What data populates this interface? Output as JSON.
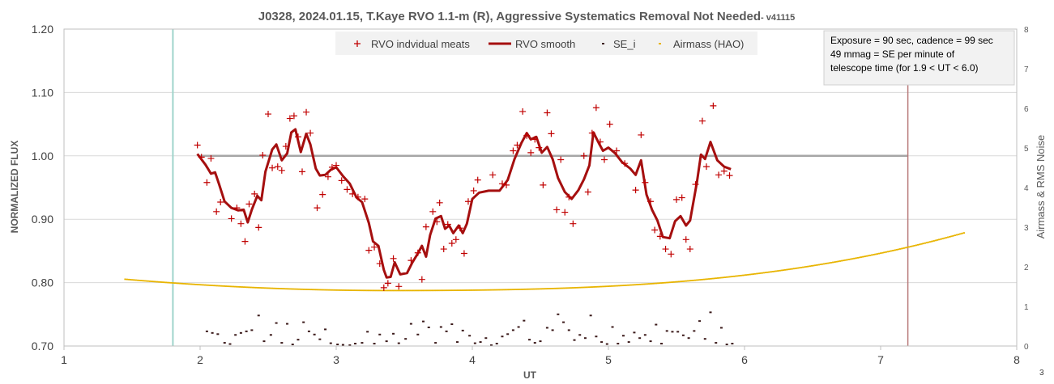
{
  "chart_data": {
    "type": "scatter",
    "title": "J0328, 2024.01.15, T.Kaye RVO 1.1-m (R), Aggressive Systematics Removal Not Needed",
    "title_suffix": "- v41115",
    "xlabel": "UT",
    "ylabel": "NORMALIZED FLUX",
    "y2label": "Airmass & RMS Noise",
    "xlim": [
      1,
      8
    ],
    "ylim": [
      0.7,
      1.2
    ],
    "y2lim": [
      0,
      8
    ],
    "x_ticks": [
      "1",
      "2",
      "3",
      "4",
      "5",
      "6",
      "7",
      "8"
    ],
    "y_ticks": [
      "0.70",
      "0.80",
      "0.90",
      "1.00",
      "1.10",
      "1.20"
    ],
    "y2_ticks": [
      "0",
      "1",
      "2",
      "3",
      "4",
      "5",
      "6",
      "7",
      "8"
    ],
    "grid": "horizontal",
    "legend_position": "top-center",
    "corner_label": "3",
    "annotation": [
      "Exposure = 90 sec, cadence = 99 sec",
      "49 mmag = SE per minute of",
      "telescope time  (for 1.9 < UT < 6.0)"
    ],
    "reference_lines": {
      "baseline_y": 1.0,
      "baseline_x_range": [
        2.0,
        7.2
      ],
      "start_line_x": 1.8,
      "end_line_x": 7.2
    },
    "series": [
      {
        "name": "RVO indvidual meats",
        "kind": "marker-plus",
        "axis": "left",
        "color": "#c00000",
        "points": [
          [
            1.98,
            1.017
          ],
          [
            2.01,
            0.998
          ],
          [
            2.05,
            0.958
          ],
          [
            2.08,
            0.996
          ],
          [
            2.12,
            0.912
          ],
          [
            2.15,
            0.927
          ],
          [
            2.23,
            0.901
          ],
          [
            2.27,
            0.918
          ],
          [
            2.3,
            0.893
          ],
          [
            2.33,
            0.865
          ],
          [
            2.36,
            0.924
          ],
          [
            2.4,
            0.94
          ],
          [
            2.43,
            0.887
          ],
          [
            2.46,
            1.001
          ],
          [
            2.5,
            1.066
          ],
          [
            2.53,
            0.981
          ],
          [
            2.57,
            0.983
          ],
          [
            2.6,
            0.977
          ],
          [
            2.63,
            1.015
          ],
          [
            2.66,
            1.059
          ],
          [
            2.69,
            1.063
          ],
          [
            2.72,
            1.03
          ],
          [
            2.75,
            0.975
          ],
          [
            2.78,
            1.069
          ],
          [
            2.81,
            1.036
          ],
          [
            2.86,
            0.918
          ],
          [
            2.9,
            0.939
          ],
          [
            2.94,
            0.967
          ],
          [
            2.97,
            0.982
          ],
          [
            3.0,
            0.985
          ],
          [
            3.04,
            0.961
          ],
          [
            3.08,
            0.947
          ],
          [
            3.12,
            0.94
          ],
          [
            3.16,
            0.935
          ],
          [
            3.21,
            0.932
          ],
          [
            3.24,
            0.851
          ],
          [
            3.28,
            0.856
          ],
          [
            3.32,
            0.83
          ],
          [
            3.35,
            0.792
          ],
          [
            3.38,
            0.799
          ],
          [
            3.42,
            0.838
          ],
          [
            3.46,
            0.794
          ],
          [
            3.55,
            0.835
          ],
          [
            3.6,
            0.847
          ],
          [
            3.63,
            0.805
          ],
          [
            3.66,
            0.888
          ],
          [
            3.71,
            0.912
          ],
          [
            3.74,
            0.896
          ],
          [
            3.76,
            0.926
          ],
          [
            3.79,
            0.853
          ],
          [
            3.82,
            0.892
          ],
          [
            3.85,
            0.862
          ],
          [
            3.88,
            0.868
          ],
          [
            3.91,
            0.886
          ],
          [
            3.94,
            0.846
          ],
          [
            3.97,
            0.928
          ],
          [
            4.01,
            0.945
          ],
          [
            4.04,
            0.962
          ],
          [
            4.15,
            0.97
          ],
          [
            4.22,
            0.956
          ],
          [
            4.25,
            0.954
          ],
          [
            4.3,
            1.008
          ],
          [
            4.33,
            1.017
          ],
          [
            4.37,
            1.07
          ],
          [
            4.4,
            1.032
          ],
          [
            4.43,
            1.005
          ],
          [
            4.46,
            1.026
          ],
          [
            4.49,
            1.013
          ],
          [
            4.52,
            0.954
          ],
          [
            4.55,
            1.068
          ],
          [
            4.58,
            1.035
          ],
          [
            4.62,
            0.915
          ],
          [
            4.65,
            0.994
          ],
          [
            4.68,
            0.911
          ],
          [
            4.71,
            0.935
          ],
          [
            4.74,
            0.893
          ],
          [
            4.82,
            1.0
          ],
          [
            4.85,
            0.943
          ],
          [
            4.88,
            1.036
          ],
          [
            4.91,
            1.076
          ],
          [
            4.94,
            1.022
          ],
          [
            4.97,
            0.994
          ],
          [
            5.01,
            1.05
          ],
          [
            5.06,
            1.008
          ],
          [
            5.12,
            0.988
          ],
          [
            5.2,
            0.946
          ],
          [
            5.24,
            1.033
          ],
          [
            5.27,
            0.958
          ],
          [
            5.31,
            0.928
          ],
          [
            5.34,
            0.883
          ],
          [
            5.38,
            0.873
          ],
          [
            5.42,
            0.853
          ],
          [
            5.46,
            0.845
          ],
          [
            5.5,
            0.931
          ],
          [
            5.54,
            0.934
          ],
          [
            5.57,
            0.868
          ],
          [
            5.6,
            0.853
          ],
          [
            5.64,
            0.955
          ],
          [
            5.69,
            1.055
          ],
          [
            5.72,
            0.983
          ],
          [
            5.77,
            1.079
          ],
          [
            5.81,
            0.97
          ],
          [
            5.85,
            0.976
          ],
          [
            5.89,
            0.969
          ]
        ]
      },
      {
        "name": "RVO smooth",
        "kind": "line",
        "axis": "left",
        "color": "#a50f0f",
        "points": [
          [
            1.98,
            1.003
          ],
          [
            2.04,
            0.986
          ],
          [
            2.08,
            0.972
          ],
          [
            2.11,
            0.974
          ],
          [
            2.14,
            0.955
          ],
          [
            2.18,
            0.928
          ],
          [
            2.23,
            0.918
          ],
          [
            2.28,
            0.914
          ],
          [
            2.32,
            0.915
          ],
          [
            2.35,
            0.895
          ],
          [
            2.38,
            0.915
          ],
          [
            2.42,
            0.937
          ],
          [
            2.45,
            0.93
          ],
          [
            2.48,
            0.975
          ],
          [
            2.53,
            1.01
          ],
          [
            2.56,
            1.018
          ],
          [
            2.6,
            0.993
          ],
          [
            2.64,
            1.004
          ],
          [
            2.67,
            1.037
          ],
          [
            2.7,
            1.042
          ],
          [
            2.74,
            1.006
          ],
          [
            2.78,
            1.035
          ],
          [
            2.81,
            1.018
          ],
          [
            2.85,
            0.98
          ],
          [
            2.88,
            0.969
          ],
          [
            2.92,
            0.97
          ],
          [
            2.96,
            0.978
          ],
          [
            3.0,
            0.982
          ],
          [
            3.05,
            0.968
          ],
          [
            3.1,
            0.956
          ],
          [
            3.15,
            0.934
          ],
          [
            3.19,
            0.927
          ],
          [
            3.24,
            0.894
          ],
          [
            3.27,
            0.865
          ],
          [
            3.31,
            0.858
          ],
          [
            3.35,
            0.82
          ],
          [
            3.37,
            0.808
          ],
          [
            3.4,
            0.809
          ],
          [
            3.43,
            0.832
          ],
          [
            3.47,
            0.813
          ],
          [
            3.52,
            0.815
          ],
          [
            3.56,
            0.832
          ],
          [
            3.6,
            0.846
          ],
          [
            3.63,
            0.858
          ],
          [
            3.66,
            0.841
          ],
          [
            3.69,
            0.875
          ],
          [
            3.73,
            0.901
          ],
          [
            3.77,
            0.905
          ],
          [
            3.8,
            0.885
          ],
          [
            3.83,
            0.89
          ],
          [
            3.86,
            0.878
          ],
          [
            3.9,
            0.89
          ],
          [
            3.93,
            0.878
          ],
          [
            3.96,
            0.893
          ],
          [
            4.0,
            0.932
          ],
          [
            4.05,
            0.942
          ],
          [
            4.12,
            0.945
          ],
          [
            4.2,
            0.945
          ],
          [
            4.26,
            0.962
          ],
          [
            4.31,
            0.995
          ],
          [
            4.36,
            1.02
          ],
          [
            4.4,
            1.036
          ],
          [
            4.43,
            1.026
          ],
          [
            4.47,
            1.03
          ],
          [
            4.51,
            1.005
          ],
          [
            4.55,
            1.014
          ],
          [
            4.59,
            0.995
          ],
          [
            4.63,
            0.965
          ],
          [
            4.68,
            0.943
          ],
          [
            4.73,
            0.932
          ],
          [
            4.78,
            0.946
          ],
          [
            4.82,
            0.963
          ],
          [
            4.86,
            0.985
          ],
          [
            4.89,
            1.037
          ],
          [
            4.93,
            1.02
          ],
          [
            4.96,
            1.008
          ],
          [
            5.0,
            1.013
          ],
          [
            5.05,
            1.004
          ],
          [
            5.1,
            0.99
          ],
          [
            5.16,
            0.98
          ],
          [
            5.2,
            0.97
          ],
          [
            5.24,
            0.993
          ],
          [
            5.28,
            0.939
          ],
          [
            5.32,
            0.915
          ],
          [
            5.36,
            0.898
          ],
          [
            5.4,
            0.872
          ],
          [
            5.45,
            0.87
          ],
          [
            5.49,
            0.897
          ],
          [
            5.53,
            0.905
          ],
          [
            5.57,
            0.89
          ],
          [
            5.6,
            0.898
          ],
          [
            5.65,
            0.958
          ],
          [
            5.68,
            1.002
          ],
          [
            5.71,
            0.995
          ],
          [
            5.75,
            1.022
          ],
          [
            5.8,
            0.993
          ],
          [
            5.85,
            0.983
          ],
          [
            5.9,
            0.979
          ]
        ]
      },
      {
        "name": "SE_i",
        "kind": "marker-dash",
        "axis": "right",
        "color": "#3b1a1a",
        "points": [
          [
            2.05,
            0.37
          ],
          [
            2.09,
            0.33
          ],
          [
            2.13,
            0.3
          ],
          [
            2.18,
            0.08
          ],
          [
            2.22,
            0.05
          ],
          [
            2.26,
            0.28
          ],
          [
            2.3,
            0.33
          ],
          [
            2.34,
            0.37
          ],
          [
            2.38,
            0.4
          ],
          [
            2.43,
            0.77
          ],
          [
            2.47,
            0.12
          ],
          [
            2.52,
            0.28
          ],
          [
            2.56,
            0.58
          ],
          [
            2.6,
            0.08
          ],
          [
            2.64,
            0.56
          ],
          [
            2.68,
            0.04
          ],
          [
            2.72,
            0.16
          ],
          [
            2.76,
            0.6
          ],
          [
            2.8,
            0.37
          ],
          [
            2.84,
            0.29
          ],
          [
            2.88,
            0.17
          ],
          [
            2.92,
            0.42
          ],
          [
            2.96,
            0.07
          ],
          [
            3.01,
            0.04
          ],
          [
            3.05,
            0.03
          ],
          [
            3.1,
            0.02
          ],
          [
            3.14,
            0.06
          ],
          [
            3.19,
            0.08
          ],
          [
            3.23,
            0.36
          ],
          [
            3.28,
            0.06
          ],
          [
            3.32,
            0.29
          ],
          [
            3.37,
            0.12
          ],
          [
            3.42,
            0.31
          ],
          [
            3.46,
            0.07
          ],
          [
            3.51,
            0.18
          ],
          [
            3.55,
            0.56
          ],
          [
            3.6,
            0.29
          ],
          [
            3.64,
            0.62
          ],
          [
            3.68,
            0.47
          ],
          [
            3.73,
            0.08
          ],
          [
            3.77,
            0.48
          ],
          [
            3.81,
            0.37
          ],
          [
            3.85,
            0.55
          ],
          [
            3.89,
            0.1
          ],
          [
            3.93,
            0.39
          ],
          [
            3.98,
            0.26
          ],
          [
            4.02,
            0.07
          ],
          [
            4.06,
            0.1
          ],
          [
            4.1,
            0.2
          ],
          [
            4.14,
            0.02
          ],
          [
            4.18,
            0.06
          ],
          [
            4.22,
            0.24
          ],
          [
            4.26,
            0.3
          ],
          [
            4.3,
            0.4
          ],
          [
            4.34,
            0.48
          ],
          [
            4.38,
            0.64
          ],
          [
            4.42,
            0.16
          ],
          [
            4.46,
            0.08
          ],
          [
            4.5,
            0.12
          ],
          [
            4.55,
            0.46
          ],
          [
            4.59,
            0.4
          ],
          [
            4.63,
            0.8
          ],
          [
            4.67,
            0.6
          ],
          [
            4.71,
            0.4
          ],
          [
            4.75,
            0.15
          ],
          [
            4.79,
            0.28
          ],
          [
            4.83,
            0.2
          ],
          [
            4.87,
            0.77
          ],
          [
            4.91,
            0.24
          ],
          [
            4.95,
            0.1
          ],
          [
            4.99,
            0.05
          ],
          [
            5.03,
            0.48
          ],
          [
            5.07,
            0.06
          ],
          [
            5.11,
            0.26
          ],
          [
            5.15,
            0.1
          ],
          [
            5.19,
            0.34
          ],
          [
            5.23,
            0.2
          ],
          [
            5.27,
            0.28
          ],
          [
            5.31,
            0.12
          ],
          [
            5.35,
            0.54
          ],
          [
            5.39,
            0.06
          ],
          [
            5.43,
            0.38
          ],
          [
            5.47,
            0.36
          ],
          [
            5.51,
            0.36
          ],
          [
            5.55,
            0.27
          ],
          [
            5.59,
            0.2
          ],
          [
            5.63,
            0.38
          ],
          [
            5.67,
            0.63
          ],
          [
            5.71,
            0.18
          ],
          [
            5.75,
            0.85
          ],
          [
            5.79,
            0.08
          ],
          [
            5.83,
            0.46
          ],
          [
            5.87,
            0.04
          ],
          [
            5.91,
            0.06
          ]
        ]
      },
      {
        "name": "Airmass (HAO)",
        "kind": "marker-dot",
        "axis": "right",
        "color": "#e8b400",
        "curve": {
          "x_start": 1.45,
          "x_end": 7.62,
          "step": 0.013,
          "vertex_x": 3.4,
          "vertex_y": 1.4,
          "left_coef": 0.075,
          "right_coef": 0.018,
          "right_cubic": 0.0152
        }
      }
    ]
  }
}
